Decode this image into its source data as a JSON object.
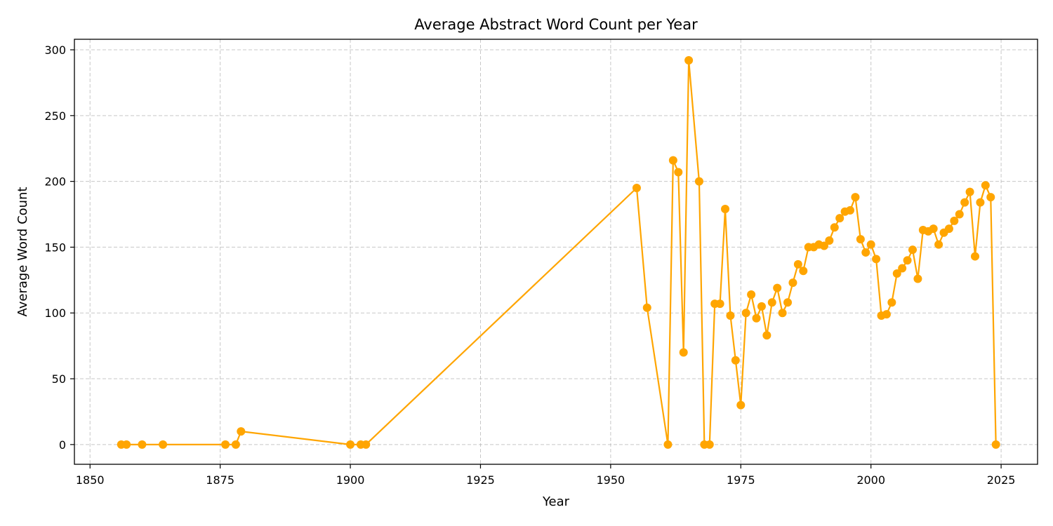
{
  "chart_data": {
    "type": "line",
    "title": "Average Abstract Word Count per Year",
    "xlabel": "Year",
    "ylabel": "Average Word Count",
    "xlim": [
      1847,
      2032
    ],
    "ylim": [
      -15,
      308
    ],
    "x_ticks": [
      1850,
      1875,
      1900,
      1925,
      1950,
      1975,
      2000,
      2025
    ],
    "y_ticks": [
      0,
      50,
      100,
      150,
      200,
      250,
      300
    ],
    "grid": true,
    "legend": "none",
    "series": [
      {
        "color": "#FFA500",
        "marker": "circle",
        "points": [
          [
            1856,
            0
          ],
          [
            1857,
            0
          ],
          [
            1860,
            0
          ],
          [
            1864,
            0
          ],
          [
            1876,
            0
          ],
          [
            1878,
            0
          ],
          [
            1879,
            10
          ],
          [
            1900,
            0
          ],
          [
            1902,
            0
          ],
          [
            1903,
            0
          ],
          [
            1955,
            195
          ],
          [
            1957,
            104
          ],
          [
            1961,
            0
          ],
          [
            1962,
            216
          ],
          [
            1963,
            207
          ],
          [
            1964,
            70
          ],
          [
            1965,
            292
          ],
          [
            1967,
            200
          ],
          [
            1968,
            0
          ],
          [
            1969,
            0
          ],
          [
            1970,
            107
          ],
          [
            1971,
            107
          ],
          [
            1972,
            179
          ],
          [
            1973,
            98
          ],
          [
            1974,
            64
          ],
          [
            1975,
            30
          ],
          [
            1976,
            100
          ],
          [
            1977,
            114
          ],
          [
            1978,
            96
          ],
          [
            1979,
            105
          ],
          [
            1980,
            83
          ],
          [
            1981,
            108
          ],
          [
            1982,
            119
          ],
          [
            1983,
            100
          ],
          [
            1984,
            108
          ],
          [
            1985,
            123
          ],
          [
            1986,
            137
          ],
          [
            1987,
            132
          ],
          [
            1988,
            150
          ],
          [
            1989,
            150
          ],
          [
            1990,
            152
          ],
          [
            1991,
            151
          ],
          [
            1992,
            155
          ],
          [
            1993,
            165
          ],
          [
            1994,
            172
          ],
          [
            1995,
            177
          ],
          [
            1996,
            178
          ],
          [
            1997,
            188
          ],
          [
            1998,
            156
          ],
          [
            1999,
            146
          ],
          [
            2000,
            152
          ],
          [
            2001,
            141
          ],
          [
            2002,
            98
          ],
          [
            2003,
            99
          ],
          [
            2004,
            108
          ],
          [
            2005,
            130
          ],
          [
            2006,
            134
          ],
          [
            2007,
            140
          ],
          [
            2008,
            148
          ],
          [
            2009,
            126
          ],
          [
            2010,
            163
          ],
          [
            2011,
            162
          ],
          [
            2012,
            164
          ],
          [
            2013,
            152
          ],
          [
            2014,
            161
          ],
          [
            2015,
            164
          ],
          [
            2016,
            170
          ],
          [
            2017,
            175
          ],
          [
            2018,
            184
          ],
          [
            2019,
            192
          ],
          [
            2020,
            143
          ],
          [
            2021,
            184
          ],
          [
            2022,
            197
          ],
          [
            2023,
            188
          ],
          [
            2024,
            0
          ]
        ]
      }
    ]
  }
}
